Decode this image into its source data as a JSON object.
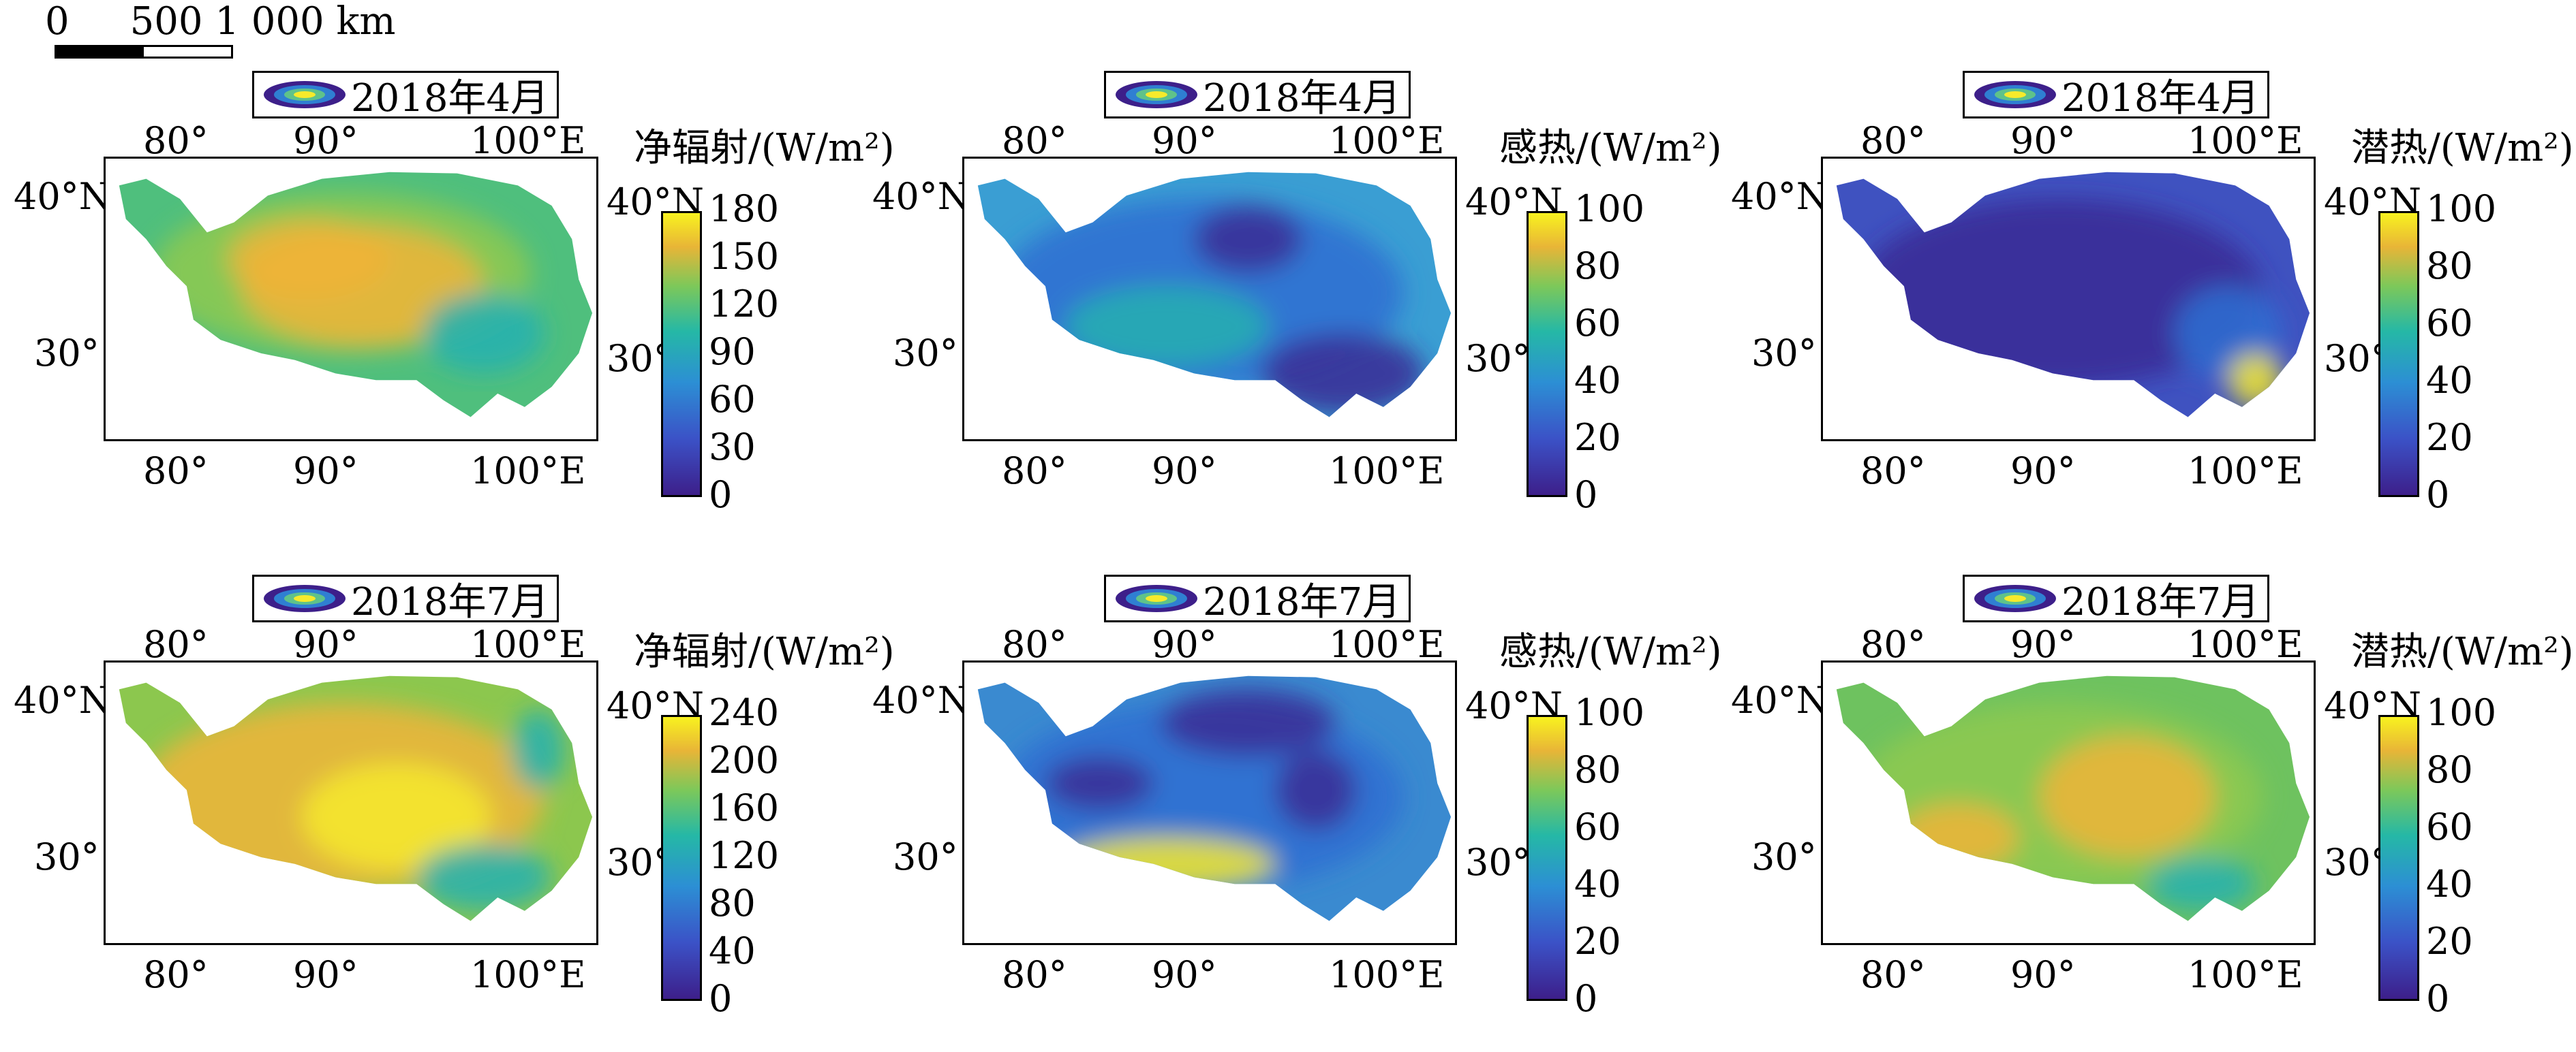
{
  "scale_bar": {
    "label": "0     500 1 000 km"
  },
  "axes": {
    "lon_labels": [
      "80°",
      "90°",
      "100°E"
    ],
    "lat_labels": [
      "40°N",
      "30°"
    ]
  },
  "palette": {
    "low": "#3d1f8a",
    "mid": "#25b8a6",
    "high": "#f8f21f"
  },
  "panels": [
    {
      "date": "2018年4月",
      "variable": "净辐射/(W/m²)",
      "ticks": [
        "180",
        "150",
        "120",
        "90",
        "60",
        "30",
        "0"
      ],
      "range": [
        0,
        180
      ]
    },
    {
      "date": "2018年4月",
      "variable": "感热/(W/m²)",
      "ticks": [
        "100",
        "80",
        "60",
        "40",
        "20",
        "0"
      ],
      "range": [
        0,
        100
      ]
    },
    {
      "date": "2018年4月",
      "variable": "潜热/(W/m²)",
      "ticks": [
        "100",
        "80",
        "60",
        "40",
        "20",
        "0"
      ],
      "range": [
        0,
        100
      ]
    },
    {
      "date": "2018年7月",
      "variable": "净辐射/(W/m²)",
      "ticks": [
        "240",
        "200",
        "160",
        "120",
        "80",
        "40",
        "0"
      ],
      "range": [
        0,
        240
      ]
    },
    {
      "date": "2018年7月",
      "variable": "感热/(W/m²)",
      "ticks": [
        "100",
        "80",
        "60",
        "40",
        "20",
        "0"
      ],
      "range": [
        0,
        100
      ]
    },
    {
      "date": "2018年7月",
      "variable": "潜热/(W/m²)",
      "ticks": [
        "100",
        "80",
        "60",
        "40",
        "20",
        "0"
      ],
      "range": [
        0,
        100
      ]
    }
  ]
}
